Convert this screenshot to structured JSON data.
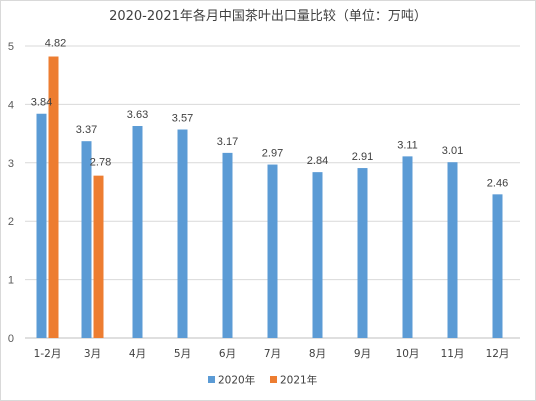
{
  "chart_data": {
    "type": "bar",
    "title": "2020-2021年各月中国茶叶出口量比较（单位：万吨）",
    "categories": [
      "1-2月",
      "3月",
      "4月",
      "5月",
      "6月",
      "7月",
      "8月",
      "9月",
      "10月",
      "11月",
      "12月"
    ],
    "series": [
      {
        "name": "2020年",
        "color": "#5b9bd5",
        "values": [
          3.84,
          3.37,
          3.63,
          3.57,
          3.17,
          2.97,
          2.84,
          2.91,
          3.11,
          3.01,
          2.46
        ],
        "labels": [
          "3.84",
          "3.37",
          "3.63",
          "3.57",
          "3.17",
          "2.97",
          "2.84",
          "2.91",
          "3.11",
          "3.01",
          "2.46"
        ]
      },
      {
        "name": "2021年",
        "color": "#ed7d31",
        "values": [
          4.82,
          2.78,
          null,
          null,
          null,
          null,
          null,
          null,
          null,
          null,
          null
        ],
        "labels": [
          "4.82",
          "2.78",
          null,
          null,
          null,
          null,
          null,
          null,
          null,
          null,
          null
        ]
      }
    ],
    "ylim": [
      0,
      5
    ],
    "yticks": [
      "0",
      "1",
      "2",
      "3",
      "4",
      "5"
    ],
    "grid": true,
    "legend_position": "bottom"
  }
}
